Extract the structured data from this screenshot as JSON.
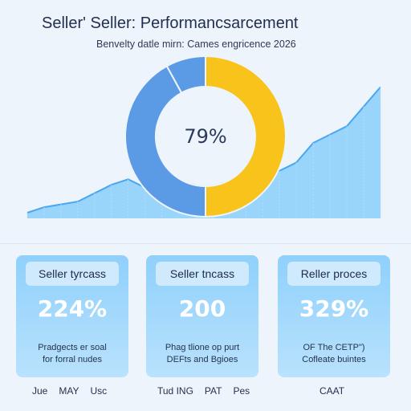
{
  "title": "Seller' Seller: Performancsarcement",
  "subtitle": "Benvelty datle mirn: Cames engricence 2026",
  "colors": {
    "background": "#eef4fb",
    "area_fill": "#8fd0fb",
    "ring_yellow": "#f8c31a",
    "ring_blue": "#5b9be6",
    "card_fill": "#9dd6fb"
  },
  "chart_data": [
    {
      "type": "area",
      "series": [
        {
          "values": [
            2,
            4,
            5,
            6,
            9,
            12,
            14,
            11,
            8,
            9,
            13,
            14,
            12,
            13,
            15,
            17,
            20,
            27,
            30,
            33,
            40,
            47
          ]
        }
      ],
      "ylim": [
        0,
        50
      ],
      "grid": false
    },
    {
      "type": "pie",
      "title": "",
      "center_label": "79%",
      "slices": [
        {
          "label": "",
          "value": 50,
          "color": "#f8c31a"
        },
        {
          "label": "",
          "value": 42,
          "color": "#5b9be6"
        },
        {
          "label": "",
          "value": 8,
          "color": "#5b9be6"
        }
      ]
    }
  ],
  "cards": [
    {
      "label": "Seller tyrcass",
      "value": "224%",
      "desc_line1": "Pradgects er soal",
      "desc_line2": "for forral nudes",
      "footer": [
        "Jue",
        "MAY",
        "Usc"
      ]
    },
    {
      "label": "Seller tncass",
      "value": "200",
      "desc_line1": "Phag tlione op purt",
      "desc_line2": "DEFts and Bgioes",
      "footer": [
        "Tud ING",
        "PAT",
        "Pes"
      ]
    },
    {
      "label": "Reller proces",
      "value": "329%",
      "desc_line1": "OF The CETP\")",
      "desc_line2": "Cofleate buintes",
      "footer": [
        "CAAT"
      ]
    }
  ]
}
